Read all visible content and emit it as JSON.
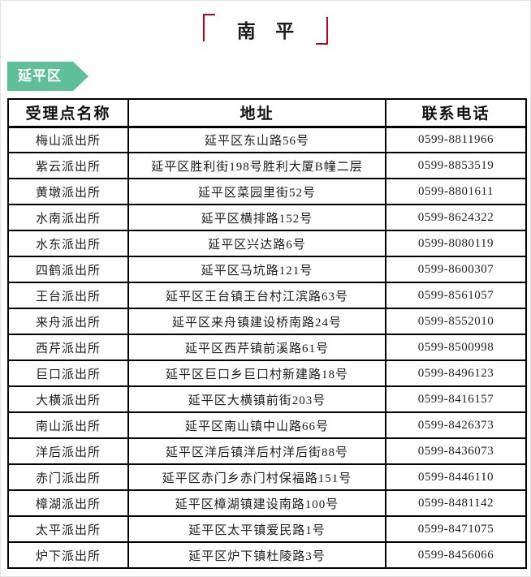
{
  "page": {
    "title": "南 平",
    "region_badge": "延平区"
  },
  "colors": {
    "accent_red": "#c00114",
    "badge_green": "#5fbf99",
    "table_border": "#000000"
  },
  "table": {
    "headers": [
      "受理点名称",
      "地址",
      "联系电话"
    ],
    "rows": [
      {
        "name": "梅山派出所",
        "address": "延平区东山路56号",
        "phone": "0599-8811966"
      },
      {
        "name": "紫云派出所",
        "address": "延平区胜利街198号胜利大厦B幢二层",
        "phone": "0599-8853519"
      },
      {
        "name": "黄墩派出所",
        "address": "延平区菜园里街52号",
        "phone": "0599-8801611"
      },
      {
        "name": "水南派出所",
        "address": "延平区横排路152号",
        "phone": "0599-8624322"
      },
      {
        "name": "水东派出所",
        "address": "延平区兴达路6号",
        "phone": "0599-8080119"
      },
      {
        "name": "四鹤派出所",
        "address": "延平区马坑路121号",
        "phone": "0599-8600307"
      },
      {
        "name": "王台派出所",
        "address": "延平区王台镇王台村江滨路63号",
        "phone": "0599-8561057"
      },
      {
        "name": "来舟派出所",
        "address": "延平区来舟镇建设桥南路24号",
        "phone": "0599-8552010"
      },
      {
        "name": "西芹派出所",
        "address": "延平区西芹镇前溪路61号",
        "phone": "0599-8500998"
      },
      {
        "name": "巨口派出所",
        "address": "延平区巨口乡巨口村新建路18号",
        "phone": "0599-8496123"
      },
      {
        "name": "大横派出所",
        "address": "延平区大横镇前街203号",
        "phone": "0599-8416157"
      },
      {
        "name": "南山派出所",
        "address": "延平区南山镇中山路66号",
        "phone": "0599-8426373"
      },
      {
        "name": "洋后派出所",
        "address": "延平区洋后镇洋后村洋后街88号",
        "phone": "0599-8436073"
      },
      {
        "name": "赤门派出所",
        "address": "延平区赤门乡赤门村保福路151号",
        "phone": "0599-8446110"
      },
      {
        "name": "樟湖派出所",
        "address": "延平区樟湖镇建设南路100号",
        "phone": "0599-8481142"
      },
      {
        "name": "太平派出所",
        "address": "延平区太平镇爱民路1号",
        "phone": "0599-8471075"
      },
      {
        "name": "炉下派出所",
        "address": "延平区炉下镇杜陵路3号",
        "phone": "0599-8456066"
      }
    ]
  }
}
